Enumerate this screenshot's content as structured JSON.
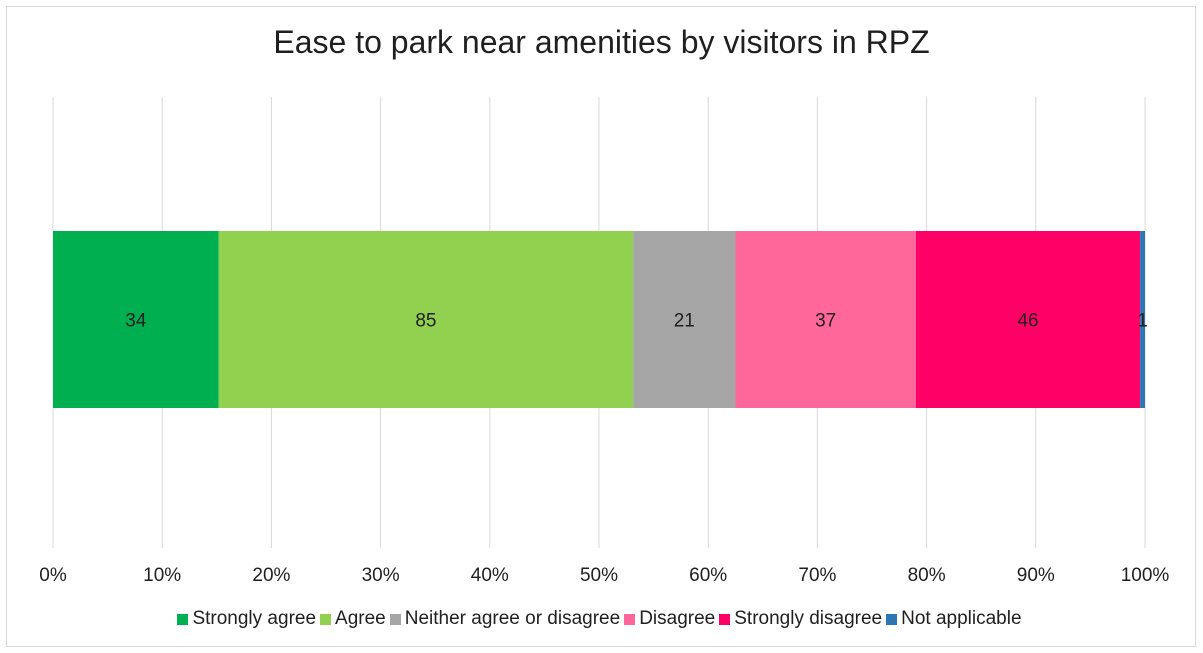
{
  "chart_data": {
    "type": "bar",
    "orientation": "horizontal",
    "stacked": "percent",
    "title": "Ease to park near amenities by visitors in RPZ",
    "xlabel": "",
    "ylabel": "",
    "xlim": [
      0,
      100
    ],
    "x_ticks": [
      "0%",
      "10%",
      "20%",
      "30%",
      "40%",
      "50%",
      "60%",
      "70%",
      "80%",
      "90%",
      "100%"
    ],
    "grid": true,
    "legend_position": "bottom",
    "series": [
      {
        "name": "Strongly agree",
        "values": [
          34
        ],
        "color": "#00b050"
      },
      {
        "name": "Agree",
        "values": [
          85
        ],
        "color": "#92d050"
      },
      {
        "name": "Neither agree or disagree",
        "values": [
          21
        ],
        "color": "#a6a6a6"
      },
      {
        "name": "Disagree",
        "values": [
          37
        ],
        "color": "#ff6699"
      },
      {
        "name": "Strongly disagree",
        "values": [
          46
        ],
        "color": "#ff0066"
      },
      {
        "name": "Not applicable",
        "values": [
          1
        ],
        "color": "#2e75b6"
      }
    ]
  }
}
